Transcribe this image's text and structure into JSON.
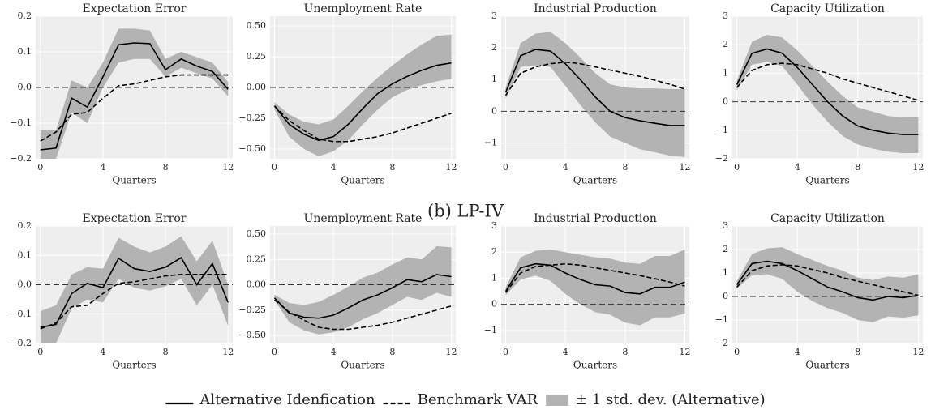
{
  "figure_label": "(b) LP-IV",
  "chart_data": [
    {
      "type": "line",
      "title": "Expectation Error",
      "xlabel": "Quarters",
      "x": [
        0,
        1,
        2,
        3,
        4,
        5,
        6,
        7,
        8,
        9,
        10,
        11,
        12
      ],
      "xlim": [
        -0.3,
        12.3
      ],
      "xticks": [
        0,
        4,
        8,
        12
      ],
      "ylim": [
        -0.2,
        0.2
      ],
      "yticks": [
        {
          "value": -0.2,
          "label": "−0.2"
        },
        {
          "value": -0.1,
          "label": "−0.1"
        },
        {
          "value": 0,
          "label": "0.0"
        },
        0.1,
        0.2
      ],
      "grid": true,
      "hline": 0,
      "series": [
        {
          "name": "Alternative Idenfication",
          "color": "#000000",
          "style": "solid",
          "values": [
            -0.175,
            -0.17,
            -0.03,
            -0.055,
            0.03,
            0.12,
            0.125,
            0.123,
            0.05,
            0.08,
            0.06,
            0.045,
            -0.005
          ]
        },
        {
          "name": "Benchmark VAR",
          "color": "#000000",
          "style": "dashed",
          "values": [
            -0.15,
            -0.125,
            -0.075,
            -0.07,
            -0.03,
            0.005,
            0.01,
            0.02,
            0.03,
            0.035,
            0.035,
            0.035,
            0.035
          ]
        },
        {
          "name": "± 1 std. dev. (Alternative)",
          "color": "#b3b3b3",
          "style": "band",
          "lower": [
            -0.2,
            -0.2,
            -0.07,
            -0.1,
            0.0,
            0.07,
            0.08,
            0.08,
            0.03,
            0.055,
            0.04,
            0.025,
            -0.025
          ],
          "upper": [
            -0.12,
            -0.12,
            0.02,
            0.0,
            0.07,
            0.165,
            0.165,
            0.16,
            0.08,
            0.1,
            0.085,
            0.07,
            0.015
          ]
        }
      ]
    },
    {
      "type": "line",
      "title": "Unemployment Rate",
      "xlabel": "Quarters",
      "x": [
        0,
        1,
        2,
        3,
        4,
        5,
        6,
        7,
        8,
        9,
        10,
        11,
        12
      ],
      "xlim": [
        -0.3,
        12.3
      ],
      "xticks": [
        0,
        4,
        8,
        12
      ],
      "ylim": [
        -0.58,
        0.58
      ],
      "yticks": [
        {
          "value": -0.5,
          "label": "−0.50"
        },
        {
          "value": -0.25,
          "label": "−0.25"
        },
        {
          "value": 0,
          "label": "0.00"
        },
        0.25,
        {
          "value": 0.5,
          "label": "0.50"
        }
      ],
      "grid": true,
      "hline": 0,
      "series": [
        {
          "name": "Alternative Idenfication",
          "color": "#000000",
          "style": "solid",
          "values": [
            -0.15,
            -0.3,
            -0.38,
            -0.43,
            -0.4,
            -0.3,
            -0.17,
            -0.05,
            0.03,
            0.09,
            0.14,
            0.18,
            0.2
          ]
        },
        {
          "name": "Benchmark VAR",
          "color": "#000000",
          "style": "dashed",
          "values": [
            -0.15,
            -0.27,
            -0.35,
            -0.42,
            -0.44,
            -0.44,
            -0.42,
            -0.4,
            -0.37,
            -0.33,
            -0.29,
            -0.25,
            -0.21
          ]
        },
        {
          "name": "± 1 std. dev. (Alternative)",
          "color": "#b3b3b3",
          "style": "band",
          "lower": [
            -0.18,
            -0.4,
            -0.5,
            -0.56,
            -0.52,
            -0.43,
            -0.3,
            -0.18,
            -0.08,
            -0.02,
            0.02,
            0.05,
            0.07
          ],
          "upper": [
            -0.12,
            -0.22,
            -0.28,
            -0.3,
            -0.26,
            -0.15,
            -0.03,
            0.08,
            0.18,
            0.27,
            0.35,
            0.42,
            0.43
          ]
        }
      ]
    },
    {
      "type": "line",
      "title": "Industrial Production",
      "xlabel": "Quarters",
      "x": [
        0,
        1,
        2,
        3,
        4,
        5,
        6,
        7,
        8,
        9,
        10,
        11,
        12
      ],
      "xlim": [
        -0.3,
        12.3
      ],
      "xticks": [
        0,
        4,
        8,
        12
      ],
      "ylim": [
        -1.5,
        3
      ],
      "yticks": [
        {
          "value": -1,
          "label": "−1"
        },
        0,
        1,
        2,
        3
      ],
      "grid": true,
      "hline": 0,
      "series": [
        {
          "name": "Alternative Idenfication",
          "color": "#000000",
          "style": "solid",
          "values": [
            0.6,
            1.75,
            1.95,
            1.9,
            1.5,
            1.0,
            0.45,
            0.0,
            -0.2,
            -0.3,
            -0.38,
            -0.45,
            -0.45
          ]
        },
        {
          "name": "Benchmark VAR",
          "color": "#000000",
          "style": "dashed",
          "values": [
            0.5,
            1.2,
            1.4,
            1.5,
            1.55,
            1.5,
            1.4,
            1.3,
            1.2,
            1.1,
            0.98,
            0.85,
            0.7
          ]
        },
        {
          "name": "± 1 std. dev. (Alternative)",
          "color": "#b3b3b3",
          "style": "band",
          "lower": [
            0.4,
            1.4,
            1.45,
            1.4,
            0.8,
            0.2,
            -0.35,
            -0.8,
            -1.0,
            -1.2,
            -1.3,
            -1.4,
            -1.45
          ],
          "upper": [
            0.75,
            2.15,
            2.45,
            2.5,
            2.15,
            1.7,
            1.2,
            0.85,
            0.75,
            0.72,
            0.72,
            0.7,
            0.7
          ]
        }
      ]
    },
    {
      "type": "line",
      "title": "Capacity Utilization",
      "xlabel": "Quarters",
      "x": [
        0,
        1,
        2,
        3,
        4,
        5,
        6,
        7,
        8,
        9,
        10,
        11,
        12
      ],
      "xlim": [
        -0.3,
        12.3
      ],
      "xticks": [
        0,
        4,
        8,
        12
      ],
      "ylim": [
        -2,
        3
      ],
      "yticks": [
        {
          "value": -2,
          "label": "−2"
        },
        {
          "value": -1,
          "label": "−1"
        },
        0,
        1,
        2,
        3
      ],
      "grid": true,
      "hline": 0,
      "series": [
        {
          "name": "Alternative Idenfication",
          "color": "#000000",
          "style": "solid",
          "values": [
            0.6,
            1.7,
            1.85,
            1.7,
            1.2,
            0.6,
            0.0,
            -0.5,
            -0.85,
            -1.0,
            -1.1,
            -1.15,
            -1.15
          ]
        },
        {
          "name": "Benchmark VAR",
          "color": "#000000",
          "style": "dashed",
          "values": [
            0.5,
            1.1,
            1.3,
            1.35,
            1.3,
            1.15,
            1.0,
            0.8,
            0.65,
            0.5,
            0.35,
            0.2,
            0.05
          ]
        },
        {
          "name": "± 1 std. dev. (Alternative)",
          "color": "#b3b3b3",
          "style": "band",
          "lower": [
            0.4,
            1.3,
            1.4,
            1.25,
            0.6,
            -0.1,
            -0.7,
            -1.2,
            -1.5,
            -1.65,
            -1.75,
            -1.8,
            -1.8
          ],
          "upper": [
            0.75,
            2.1,
            2.35,
            2.25,
            1.8,
            1.25,
            0.7,
            0.2,
            -0.2,
            -0.35,
            -0.5,
            -0.55,
            -0.55
          ]
        }
      ]
    },
    {
      "type": "line",
      "title": "Expectation Error",
      "xlabel": "Quarters",
      "x": [
        0,
        1,
        2,
        3,
        4,
        5,
        6,
        7,
        8,
        9,
        10,
        11,
        12
      ],
      "xlim": [
        -0.3,
        12.3
      ],
      "xticks": [
        0,
        4,
        8,
        12
      ],
      "ylim": [
        -0.2,
        0.2
      ],
      "yticks": [
        {
          "value": -0.2,
          "label": "−0.2"
        },
        {
          "value": -0.1,
          "label": "−0.1"
        },
        {
          "value": 0,
          "label": "0.0"
        },
        0.1,
        0.2
      ],
      "grid": true,
      "hline": 0,
      "series": [
        {
          "name": "Alternative Idenfication",
          "color": "#000000",
          "style": "solid",
          "values": [
            -0.145,
            -0.135,
            -0.03,
            0.005,
            -0.01,
            0.09,
            0.055,
            0.045,
            0.06,
            0.092,
            0.0,
            0.072,
            -0.06
          ]
        },
        {
          "name": "Benchmark VAR",
          "color": "#000000",
          "style": "dashed",
          "values": [
            -0.15,
            -0.13,
            -0.075,
            -0.07,
            -0.03,
            0.005,
            0.01,
            0.02,
            0.03,
            0.035,
            0.035,
            0.035,
            0.035
          ]
        },
        {
          "name": "± 1 std. dev. (Alternative)",
          "color": "#b3b3b3",
          "style": "band",
          "lower": [
            -0.2,
            -0.2,
            -0.08,
            -0.05,
            -0.06,
            0.02,
            -0.01,
            -0.02,
            -0.005,
            0.02,
            -0.07,
            0.0,
            -0.14
          ],
          "upper": [
            -0.09,
            -0.07,
            0.035,
            0.06,
            0.055,
            0.16,
            0.13,
            0.11,
            0.13,
            0.165,
            0.08,
            0.15,
            0.0
          ]
        }
      ]
    },
    {
      "type": "line",
      "title": "Unemployment Rate",
      "xlabel": "Quarters",
      "x": [
        0,
        1,
        2,
        3,
        4,
        5,
        6,
        7,
        8,
        9,
        10,
        11,
        12
      ],
      "xlim": [
        -0.3,
        12.3
      ],
      "xticks": [
        0,
        4,
        8,
        12
      ],
      "ylim": [
        -0.58,
        0.58
      ],
      "yticks": [
        {
          "value": -0.5,
          "label": "−0.50"
        },
        {
          "value": -0.25,
          "label": "−0.25"
        },
        {
          "value": 0,
          "label": "0.00"
        },
        0.25,
        {
          "value": 0.5,
          "label": "0.50"
        }
      ],
      "grid": true,
      "hline": 0,
      "series": [
        {
          "name": "Alternative Idenfication",
          "color": "#000000",
          "style": "solid",
          "values": [
            -0.13,
            -0.28,
            -0.32,
            -0.33,
            -0.3,
            -0.23,
            -0.15,
            -0.1,
            -0.03,
            0.05,
            0.03,
            0.1,
            0.08
          ]
        },
        {
          "name": "Benchmark VAR",
          "color": "#000000",
          "style": "dashed",
          "values": [
            -0.15,
            -0.27,
            -0.35,
            -0.42,
            -0.44,
            -0.44,
            -0.42,
            -0.4,
            -0.37,
            -0.33,
            -0.29,
            -0.25,
            -0.21
          ]
        },
        {
          "name": "± 1 std. dev. (Alternative)",
          "color": "#b3b3b3",
          "style": "band",
          "lower": [
            -0.15,
            -0.37,
            -0.45,
            -0.49,
            -0.47,
            -0.42,
            -0.34,
            -0.28,
            -0.2,
            -0.12,
            -0.15,
            -0.08,
            -0.12
          ],
          "upper": [
            -0.1,
            -0.18,
            -0.2,
            -0.17,
            -0.1,
            -0.02,
            0.07,
            0.12,
            0.2,
            0.27,
            0.25,
            0.38,
            0.37
          ]
        }
      ]
    },
    {
      "type": "line",
      "title": "Industrial Production",
      "xlabel": "Quarters",
      "x": [
        0,
        1,
        2,
        3,
        4,
        5,
        6,
        7,
        8,
        9,
        10,
        11,
        12
      ],
      "xlim": [
        -0.3,
        12.3
      ],
      "xticks": [
        0,
        4,
        8,
        12
      ],
      "ylim": [
        -1.5,
        3
      ],
      "yticks": [
        {
          "value": -1,
          "label": "−1"
        },
        0,
        1,
        2,
        3
      ],
      "grid": true,
      "hline": 0,
      "series": [
        {
          "name": "Alternative Idenfication",
          "color": "#000000",
          "style": "solid",
          "values": [
            0.5,
            1.4,
            1.55,
            1.5,
            1.2,
            0.95,
            0.75,
            0.7,
            0.45,
            0.4,
            0.65,
            0.65,
            0.85
          ]
        },
        {
          "name": "Benchmark VAR",
          "color": "#000000",
          "style": "dashed",
          "values": [
            0.45,
            1.2,
            1.45,
            1.5,
            1.55,
            1.5,
            1.4,
            1.3,
            1.2,
            1.1,
            0.98,
            0.85,
            0.7
          ]
        },
        {
          "name": "± 1 std. dev. (Alternative)",
          "color": "#b3b3b3",
          "style": "band",
          "lower": [
            0.35,
            0.95,
            1.1,
            0.9,
            0.4,
            0.0,
            -0.3,
            -0.4,
            -0.7,
            -0.8,
            -0.5,
            -0.5,
            -0.35
          ],
          "upper": [
            0.65,
            1.8,
            2.05,
            2.1,
            2.0,
            1.9,
            1.8,
            1.75,
            1.6,
            1.55,
            1.85,
            1.85,
            2.1
          ]
        }
      ]
    },
    {
      "type": "line",
      "title": "Capacity Utilization",
      "xlabel": "Quarters",
      "x": [
        0,
        1,
        2,
        3,
        4,
        5,
        6,
        7,
        8,
        9,
        10,
        11,
        12
      ],
      "xlim": [
        -0.3,
        12.3
      ],
      "xticks": [
        0,
        4,
        8,
        12
      ],
      "ylim": [
        -2,
        3
      ],
      "yticks": [
        {
          "value": -2,
          "label": "−2"
        },
        {
          "value": -1,
          "label": "−1"
        },
        0,
        1,
        2,
        3
      ],
      "grid": true,
      "hline": 0,
      "series": [
        {
          "name": "Alternative Idenfication",
          "color": "#000000",
          "style": "solid",
          "values": [
            0.5,
            1.4,
            1.5,
            1.4,
            1.1,
            0.75,
            0.4,
            0.2,
            -0.05,
            -0.15,
            0.0,
            -0.05,
            0.05
          ]
        },
        {
          "name": "Benchmark VAR",
          "color": "#000000",
          "style": "dashed",
          "values": [
            0.4,
            1.1,
            1.3,
            1.35,
            1.3,
            1.15,
            1.0,
            0.8,
            0.65,
            0.5,
            0.35,
            0.2,
            0.05
          ]
        },
        {
          "name": "± 1 std. dev. (Alternative)",
          "color": "#b3b3b3",
          "style": "band",
          "lower": [
            0.35,
            0.9,
            0.95,
            0.75,
            0.2,
            -0.2,
            -0.5,
            -0.7,
            -1.0,
            -1.1,
            -0.85,
            -0.9,
            -0.8
          ],
          "upper": [
            0.65,
            1.8,
            2.05,
            2.1,
            1.8,
            1.55,
            1.3,
            1.1,
            0.8,
            0.7,
            0.85,
            0.8,
            0.95
          ]
        }
      ]
    }
  ]
}
